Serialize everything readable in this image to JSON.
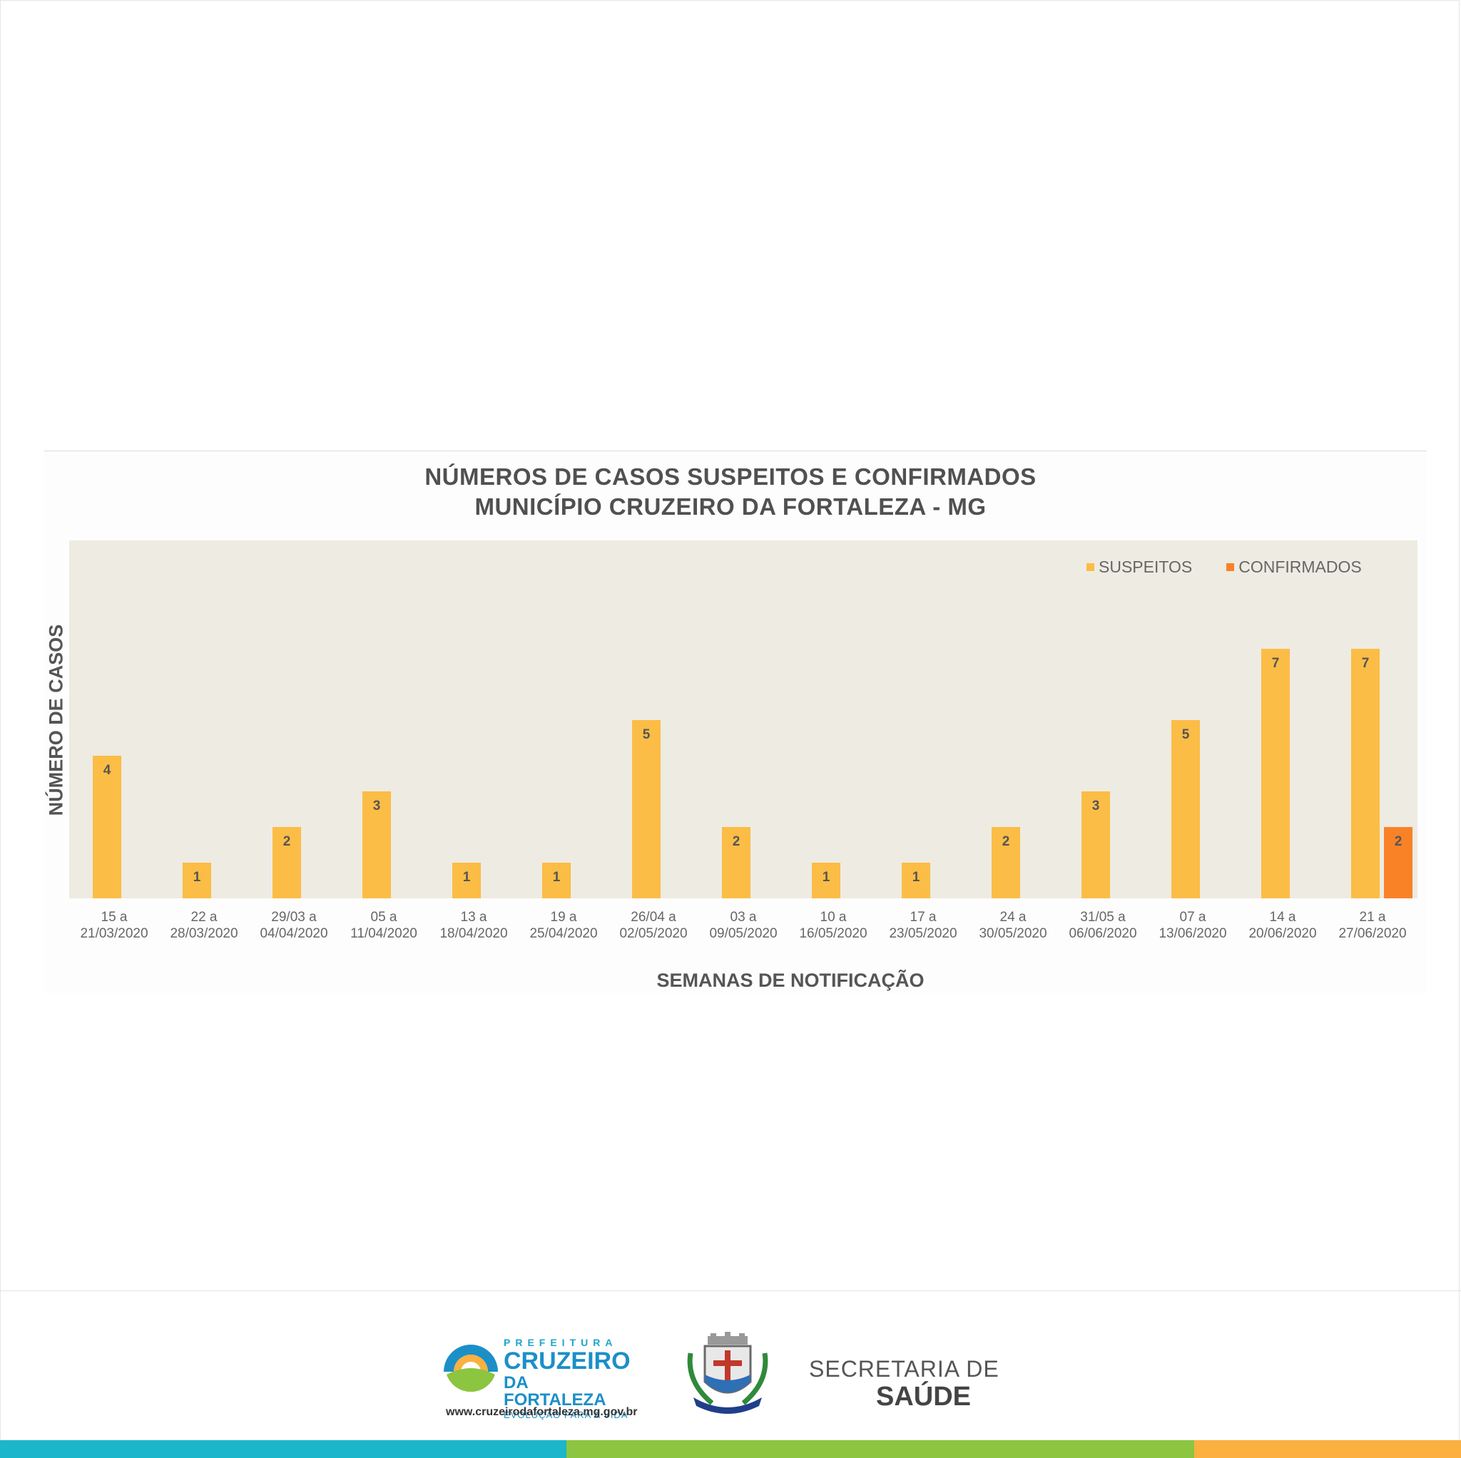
{
  "header": {
    "title_line1": "NÚMEROS  DE CASOS SUSPEITOS   E CONFIRMADOS",
    "title_line2": "MUNICÍPIO  CRUZEIRO  DA FORTALEZA - MG"
  },
  "chart_data": {
    "type": "bar",
    "title": "NÚMEROS  DE CASOS SUSPEITOS   E CONFIRMADOS MUNICÍPIO  CRUZEIRO  DA FORTALEZA - MG",
    "xlabel": "SEMANAS DE NOTIFICAÇÃO",
    "ylabel": "NÚMERO DE CASOS",
    "ylim": [
      0,
      10
    ],
    "grid": false,
    "legend_position": "top-right",
    "categories": [
      [
        "15 a",
        "21/03/2020"
      ],
      [
        "22 a",
        "28/03/2020"
      ],
      [
        "29/03 a",
        "04/04/2020"
      ],
      [
        "05 a",
        "11/04/2020"
      ],
      [
        "13 a",
        "18/04/2020"
      ],
      [
        "19 a",
        "25/04/2020"
      ],
      [
        "26/04 a",
        "02/05/2020"
      ],
      [
        "03 a",
        "09/05/2020"
      ],
      [
        "10 a",
        "16/05/2020"
      ],
      [
        "17 a",
        "23/05/2020"
      ],
      [
        "24 a",
        "30/05/2020"
      ],
      [
        "31/05 a",
        "06/06/2020"
      ],
      [
        "07 a",
        "13/06/2020"
      ],
      [
        "14 a",
        "20/06/2020"
      ],
      [
        "21 a",
        "27/06/2020"
      ]
    ],
    "series": [
      {
        "name": "SUSPEITOS",
        "color": "#fbbd46",
        "values": [
          4,
          1,
          2,
          3,
          1,
          1,
          5,
          2,
          1,
          1,
          2,
          3,
          5,
          7,
          7
        ]
      },
      {
        "name": "CONFIRMADOS",
        "color": "#f98227",
        "values": [
          0,
          0,
          0,
          0,
          0,
          0,
          0,
          0,
          0,
          0,
          0,
          0,
          0,
          0,
          2
        ]
      }
    ]
  },
  "footer": {
    "logo_prefeitura": "PREFEITURA",
    "logo_cruzeiro": "CRUZEIRO",
    "logo_fortaleza": "DA FORTALEZA",
    "logo_slogan": "EVOLUÇÃO PARA A VIDA",
    "url": "www.cruzeirodafortaleza.mg.gov.br",
    "secretaria_line1": "SECRETARIA DE",
    "secretaria_line2": "SAÚDE",
    "strip_colors": [
      "#1bb6c9",
      "#8cc540",
      "#fbb040"
    ]
  }
}
